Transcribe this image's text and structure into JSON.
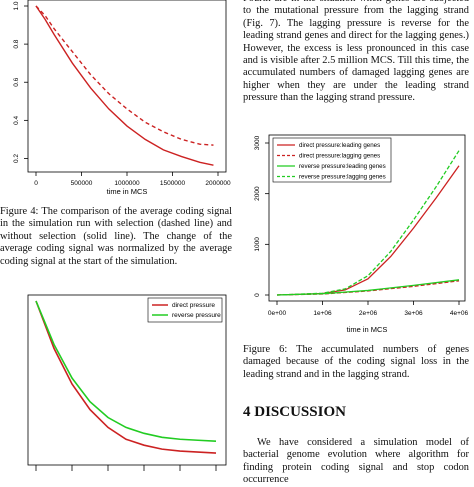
{
  "right_column": {
    "top_paragraph": "Fourth are in the situation when genes are subjected to the mutational pressure from the lagging strand (Fig. 7). The lagging pressure is reverse for the leading strand genes and direct for the lagging genes.) However, the excess is less pronounced in this case and is visible after 2.5 million MCS. Till this time, the accumulated numbers of damaged lagging genes are higher when they are under the leading strand pressure than the lagging strand pressure.",
    "figure6_caption": "Figure 6: The accumulated numbers of genes damaged because of the coding signal loss in the leading strand and in the lagging strand.",
    "section_heading": "4   DISCUSSION",
    "discussion_paragraph": "We have considered a simulation model of bacterial genome evolution where algorithm for finding protein coding signal and stop codon occurrence"
  },
  "left_column": {
    "figure4_caption": "Figure 4: The comparison of the average coding signal in the simulation run with selection (dashed line) and without selection (solid line). The change of the average coding signal was normalized by the average coding signal at the start of the simulation."
  },
  "chart_data": [
    {
      "id": "figure4",
      "type": "line",
      "xlabel": "time in MCS",
      "ylabel": "",
      "xlim": [
        0,
        2000000
      ],
      "ylim": [
        0.15,
        1.0
      ],
      "x_ticks": [
        0,
        500000,
        1000000,
        1500000,
        2000000
      ],
      "x_tick_labels": [
        "0",
        "500000",
        "1000000",
        "1500000",
        "2000000"
      ],
      "y_ticks": [
        0.2,
        0.4,
        0.6,
        0.8,
        1.0
      ],
      "y_tick_labels": [
        "0.2",
        "0.4",
        "0.6",
        "0.8",
        "1.0"
      ],
      "colors": {
        "series": "#cc2222"
      },
      "series": [
        {
          "style": "dashed",
          "x": [
            0,
            100000,
            200000,
            400000,
            600000,
            800000,
            1000000,
            1200000,
            1400000,
            1600000,
            1800000,
            1950000
          ],
          "y": [
            1.0,
            0.95,
            0.88,
            0.76,
            0.64,
            0.54,
            0.46,
            0.39,
            0.34,
            0.3,
            0.275,
            0.27
          ]
        },
        {
          "style": "solid",
          "x": [
            0,
            100000,
            200000,
            400000,
            600000,
            800000,
            1000000,
            1200000,
            1400000,
            1600000,
            1800000,
            1950000
          ],
          "y": [
            1.0,
            0.93,
            0.85,
            0.7,
            0.57,
            0.46,
            0.37,
            0.3,
            0.245,
            0.21,
            0.18,
            0.165
          ]
        }
      ]
    },
    {
      "id": "figure6",
      "type": "line",
      "xlabel": "time in MCS",
      "ylabel": "",
      "xlim": [
        0,
        4000000
      ],
      "ylim": [
        0,
        3000
      ],
      "x_ticks": [
        0,
        1000000,
        2000000,
        3000000,
        4000000
      ],
      "x_tick_labels": [
        "0e+00",
        "1e+06",
        "2e+06",
        "3e+06",
        "4e+06"
      ],
      "y_ticks": [
        0,
        1000,
        2000,
        3000
      ],
      "y_tick_labels": [
        "0",
        "1000",
        "2000",
        "3000"
      ],
      "legend_placement": "top-left",
      "colors": {
        "red": "#cc2222",
        "green": "#22cc22"
      },
      "series": [
        {
          "name": "direct pressure:leading genes",
          "color": "#cc2222",
          "style": "solid",
          "x": [
            0,
            1000000,
            1500000,
            2000000,
            2500000,
            3000000,
            3500000,
            4000000
          ],
          "y": [
            0,
            30,
            100,
            320,
            760,
            1320,
            1920,
            2550
          ]
        },
        {
          "name": "direct pressure:lagging genes",
          "color": "#cc2222",
          "style": "dashed",
          "x": [
            0,
            1000000,
            2000000,
            3000000,
            4000000
          ],
          "y": [
            0,
            20,
            80,
            170,
            280
          ]
        },
        {
          "name": "reverse pressure:leading genes",
          "color": "#22cc22",
          "style": "solid",
          "x": [
            0,
            1000000,
            2000000,
            3000000,
            4000000
          ],
          "y": [
            0,
            25,
            90,
            190,
            300
          ]
        },
        {
          "name": "reverse pressure:lagging genes",
          "color": "#22cc22",
          "style": "dashed",
          "x": [
            0,
            1000000,
            1500000,
            2000000,
            2500000,
            3000000,
            3500000,
            4000000
          ],
          "y": [
            0,
            35,
            120,
            380,
            860,
            1480,
            2140,
            2850
          ]
        }
      ]
    },
    {
      "id": "figure5",
      "type": "line",
      "xlabel": "",
      "ylabel": "",
      "xlim": [
        0,
        1
      ],
      "ylim": [
        0.2,
        1.0
      ],
      "legend_placement": "top-right",
      "series": [
        {
          "name": "direct pressure",
          "color": "#cc2222",
          "x": [
            0,
            0.05,
            0.1,
            0.2,
            0.3,
            0.4,
            0.5,
            0.6,
            0.7,
            0.8,
            0.9,
            1.0
          ],
          "y": [
            1.0,
            0.88,
            0.76,
            0.58,
            0.45,
            0.36,
            0.3,
            0.27,
            0.25,
            0.24,
            0.235,
            0.23
          ]
        },
        {
          "name": "reverse pressure",
          "color": "#22cc22",
          "x": [
            0,
            0.05,
            0.1,
            0.2,
            0.3,
            0.4,
            0.5,
            0.6,
            0.7,
            0.8,
            0.9,
            1.0
          ],
          "y": [
            1.0,
            0.89,
            0.78,
            0.61,
            0.49,
            0.41,
            0.36,
            0.33,
            0.31,
            0.3,
            0.295,
            0.29
          ]
        }
      ]
    }
  ]
}
